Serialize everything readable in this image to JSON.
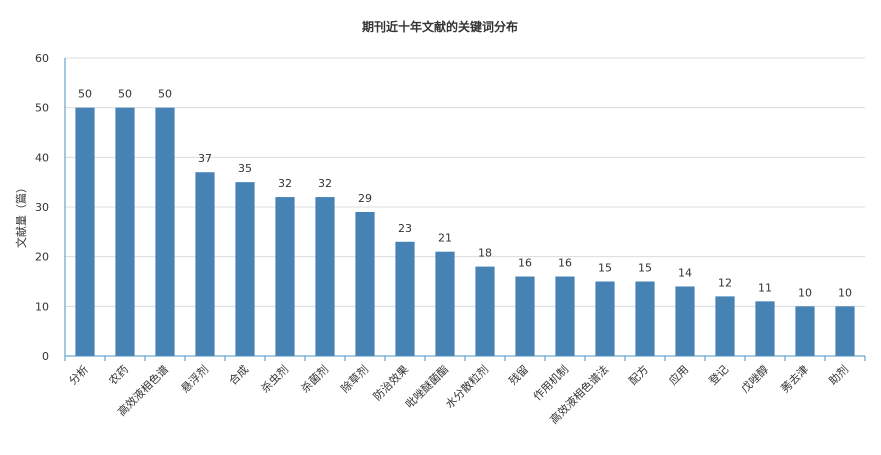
{
  "chart_data": {
    "type": "bar",
    "title": "期刊近十年文献的关键词分布",
    "xlabel": "",
    "ylabel": "文献量（篇）",
    "ylim": [
      0,
      60
    ],
    "yticks": [
      0,
      10,
      20,
      30,
      40,
      50,
      60
    ],
    "grid": true,
    "legend": "none",
    "bar_color": "#4682b4",
    "categories": [
      "分析",
      "农药",
      "高效液相色谱",
      "悬浮剂",
      "合成",
      "杀虫剂",
      "杀菌剂",
      "除草剂",
      "防治效果",
      "吡唑醚菌酯",
      "水分散粒剂",
      "残留",
      "作用机制",
      "高效液相色谱法",
      "配方",
      "应用",
      "登记",
      "戊唑醇",
      "莠去津",
      "助剂"
    ],
    "values": [
      50,
      50,
      50,
      37,
      35,
      32,
      32,
      29,
      23,
      21,
      18,
      16,
      16,
      15,
      15,
      14,
      12,
      11,
      10,
      10
    ]
  }
}
